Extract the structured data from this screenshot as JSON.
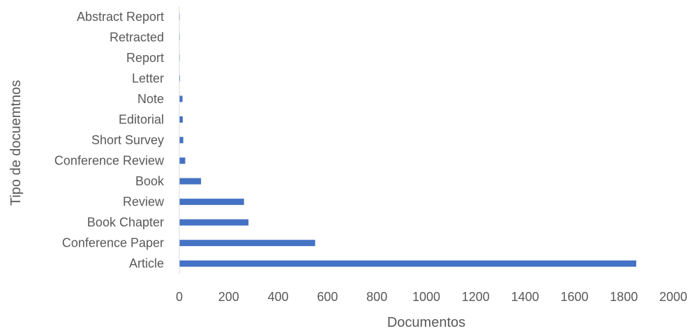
{
  "chart_data": {
    "type": "bar",
    "orientation": "horizontal",
    "categories": [
      "Article",
      "Conference Paper",
      "Book Chapter",
      "Review",
      "Book",
      "Conference Review",
      "Short Survey",
      "Editorial",
      "Note",
      "Letter",
      "Report",
      "Retracted",
      "Abstract Report"
    ],
    "values": [
      1850,
      550,
      280,
      262,
      88,
      24,
      16,
      14,
      13,
      3,
      2,
      1,
      1
    ],
    "xlabel": "Documentos",
    "ylabel": "Tipo de docuemtnos",
    "xlim": [
      0,
      2000
    ],
    "xticks": [
      0,
      200,
      400,
      600,
      800,
      1000,
      1200,
      1400,
      1600,
      1800,
      2000
    ],
    "grid": false,
    "bar_color": "#4472C4",
    "axis_color": "#D9D9D9",
    "text_color": "#595959"
  }
}
